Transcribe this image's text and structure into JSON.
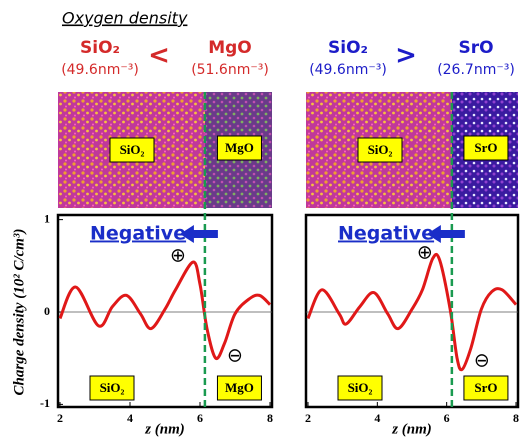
{
  "header": {
    "title": "Oxygen density"
  },
  "chart_data": [
    {
      "type": "line",
      "relation": "<",
      "relation_color": "#d42a2a",
      "left_label": "SiO₂",
      "left_density": "(49.6nm⁻³)",
      "right_label": "MgO",
      "right_density": "(51.6nm⁻³)",
      "panel_labels": [
        "SiO₂",
        "MgO"
      ],
      "annotation": "Negative",
      "plus": "⊕",
      "minus": "⊖",
      "ylabel": "Charge density (10² C/cm³)",
      "xlabel": "z (nm)",
      "interface_z": 6.14,
      "xlim": [
        2,
        8
      ],
      "xticks": [
        2,
        4,
        6,
        8
      ],
      "ylim": [
        -1.05,
        1.05
      ],
      "yticks": [
        -1,
        0,
        1
      ],
      "series": [
        {
          "color": "#e01818",
          "x": [
            2,
            2.45,
            3.1,
            3.5,
            3.9,
            4.3,
            4.6,
            5,
            5.3,
            5.8,
            6,
            6.2,
            6.45,
            6.7,
            7,
            7.4,
            7.7,
            8
          ],
          "values": [
            -0.07,
            0.27,
            -0.15,
            0.06,
            0.18,
            -0.02,
            -0.18,
            0.03,
            0.24,
            0.54,
            0.3,
            -0.18,
            -0.5,
            -0.34,
            -0.02,
            0.14,
            0.18,
            0.08
          ]
        }
      ]
    },
    {
      "type": "line",
      "relation": ">",
      "relation_color": "#1c1cc8",
      "left_label": "SiO₂",
      "left_density": "(49.6nm⁻³)",
      "right_label": "SrO",
      "right_density": "(26.7nm⁻³)",
      "panel_labels": [
        "SiO₂",
        "SrO"
      ],
      "annotation": "Negative",
      "plus": "⊕",
      "minus": "⊖",
      "xlabel": "z (nm)",
      "interface_z": 6.15,
      "xlim": [
        2,
        8
      ],
      "xticks": [
        2,
        4,
        6,
        8
      ],
      "ylim": [
        -1.05,
        1.05
      ],
      "series": [
        {
          "color": "#e01818",
          "x": [
            2,
            2.4,
            2.9,
            3.1,
            3.5,
            3.9,
            4.3,
            4.6,
            5,
            5.3,
            5.6,
            5.8,
            6.1,
            6.3,
            6.45,
            6.7,
            7,
            7.3,
            7.6,
            8
          ],
          "values": [
            -0.07,
            0.24,
            -0.02,
            -0.13,
            0.06,
            0.21,
            -0.02,
            -0.18,
            0.03,
            0.24,
            0.58,
            0.56,
            0.03,
            -0.5,
            -0.62,
            -0.39,
            0.03,
            0.22,
            0.24,
            0.08
          ]
        }
      ]
    }
  ]
}
